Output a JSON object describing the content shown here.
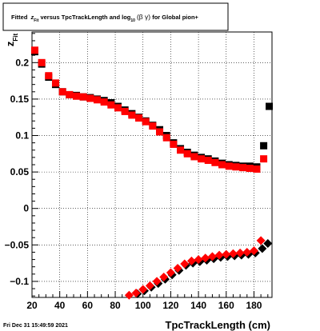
{
  "title": {
    "prefix": "Fitted ",
    "z": "z",
    "z_sub": "Fit",
    "middle": " versus TpcTrackLength and log",
    "log_sub": "10",
    "beta_gamma": "(β γ)",
    "suffix": " for Global pion+"
  },
  "footer_timestamp": "Fri Dec 31 15:49:59 2021",
  "colors": {
    "black_series": "#000000",
    "red_series": "#ff0000",
    "frame": "#000000",
    "grid": "#000000"
  },
  "chart_data": {
    "type": "scatter",
    "xlabel": "TpcTrackLength (cm)",
    "ylabel": "z",
    "ylabel_sub": "Fit",
    "xlim": [
      20,
      193
    ],
    "ylim": [
      -0.122,
      0.242
    ],
    "grid": true,
    "x_ticks": [
      20,
      40,
      60,
      80,
      100,
      120,
      140,
      160,
      180
    ],
    "y_ticks": [
      -0.1,
      -0.05,
      0,
      0.05,
      0.1,
      0.15,
      0.2
    ],
    "x_tick_labels": [
      "20",
      "40",
      "60",
      "80",
      "100",
      "120",
      "140",
      "160",
      "180"
    ],
    "y_tick_labels": [
      "−0.1",
      "−0.05",
      "0",
      "0.05",
      "0.1",
      "0.15",
      "0.2"
    ],
    "series": [
      {
        "marker": "square",
        "color": "#000000",
        "x": [
          22,
          27,
          32,
          37,
          42,
          47,
          52,
          57,
          62,
          67,
          72,
          77,
          82,
          87,
          92,
          97,
          102,
          107,
          112,
          117,
          122,
          127,
          132,
          137,
          142,
          147,
          152,
          157,
          162,
          167,
          172,
          177,
          182,
          187,
          191
        ],
        "y": [
          0.215,
          0.198,
          0.18,
          0.17,
          0.16,
          0.156,
          0.155,
          0.153,
          0.152,
          0.15,
          0.148,
          0.145,
          0.14,
          0.135,
          0.13,
          0.125,
          0.12,
          0.114,
          0.108,
          0.1,
          0.09,
          0.082,
          0.077,
          0.073,
          0.07,
          0.068,
          0.065,
          0.062,
          0.06,
          0.059,
          0.058,
          0.058,
          0.057,
          0.086,
          0.14
        ]
      },
      {
        "marker": "square",
        "color": "#ff0000",
        "x": [
          22,
          27,
          32,
          37,
          42,
          47,
          52,
          57,
          62,
          67,
          72,
          77,
          82,
          87,
          92,
          97,
          102,
          107,
          112,
          117,
          122,
          127,
          132,
          137,
          142,
          147,
          152,
          157,
          162,
          167,
          172,
          177,
          182,
          187
        ],
        "y": [
          0.217,
          0.2,
          0.182,
          0.172,
          0.16,
          0.156,
          0.154,
          0.153,
          0.151,
          0.149,
          0.146,
          0.142,
          0.138,
          0.133,
          0.128,
          0.124,
          0.119,
          0.113,
          0.105,
          0.097,
          0.088,
          0.08,
          0.075,
          0.071,
          0.068,
          0.066,
          0.063,
          0.06,
          0.058,
          0.057,
          0.056,
          0.055,
          0.054,
          0.068
        ]
      },
      {
        "marker": "diamond",
        "color": "#000000",
        "x": [
          96,
          101,
          106,
          111,
          116,
          121,
          126,
          131,
          136,
          141,
          146,
          151,
          156,
          161,
          166,
          171,
          176,
          181,
          186,
          190
        ],
        "y": [
          -0.117,
          -0.113,
          -0.108,
          -0.103,
          -0.097,
          -0.091,
          -0.085,
          -0.078,
          -0.075,
          -0.073,
          -0.071,
          -0.069,
          -0.067,
          -0.066,
          -0.065,
          -0.064,
          -0.063,
          -0.061,
          -0.055,
          -0.048
        ]
      },
      {
        "marker": "diamond",
        "color": "#ff0000",
        "x": [
          90,
          95,
          100,
          105,
          110,
          115,
          120,
          125,
          130,
          135,
          140,
          145,
          150,
          155,
          160,
          165,
          170,
          175,
          180,
          185
        ],
        "y": [
          -0.119,
          -0.116,
          -0.111,
          -0.106,
          -0.1,
          -0.094,
          -0.088,
          -0.082,
          -0.076,
          -0.072,
          -0.07,
          -0.068,
          -0.066,
          -0.064,
          -0.063,
          -0.062,
          -0.061,
          -0.06,
          -0.058,
          -0.044
        ]
      }
    ]
  }
}
